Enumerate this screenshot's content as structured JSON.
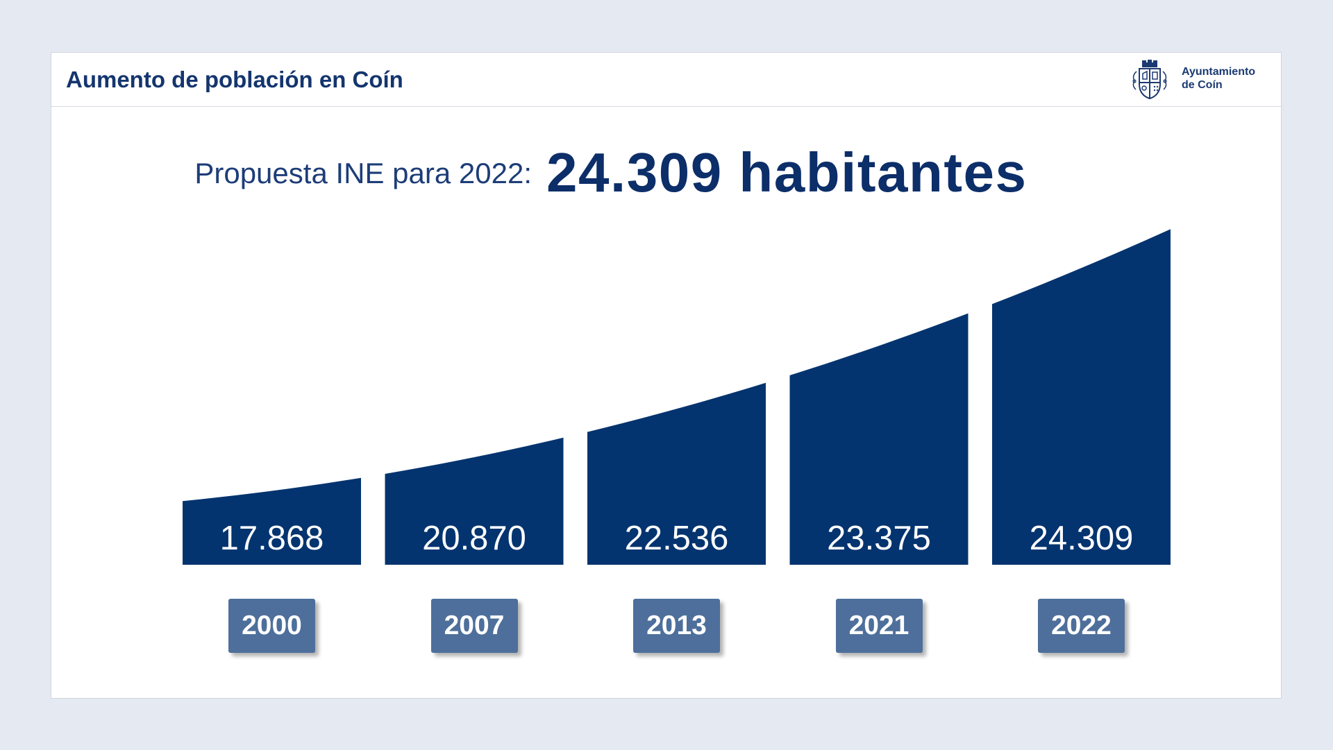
{
  "header": {
    "title": "Aumento de población en Coín"
  },
  "logo": {
    "icon": "coat-of-arms-icon",
    "line1": "Ayuntamiento",
    "line2": "de Coín"
  },
  "headline": {
    "lead": "Propuesta INE para 2022:",
    "value": "24.309 habitantes"
  },
  "colors": {
    "background": "#e5eaf2",
    "bar": "#04346f",
    "year_box": "#4e6f9b",
    "title": "#14356e"
  },
  "chart_data": {
    "type": "bar",
    "categories": [
      "2000",
      "2007",
      "2013",
      "2021",
      "2022"
    ],
    "values": [
      17868,
      20870,
      22536,
      23375,
      24309
    ],
    "data_labels": [
      "17.868",
      "20.870",
      "22.536",
      "23.375",
      "24.309"
    ],
    "xlabel": "",
    "ylabel": "",
    "grid": false,
    "legend": "none"
  }
}
